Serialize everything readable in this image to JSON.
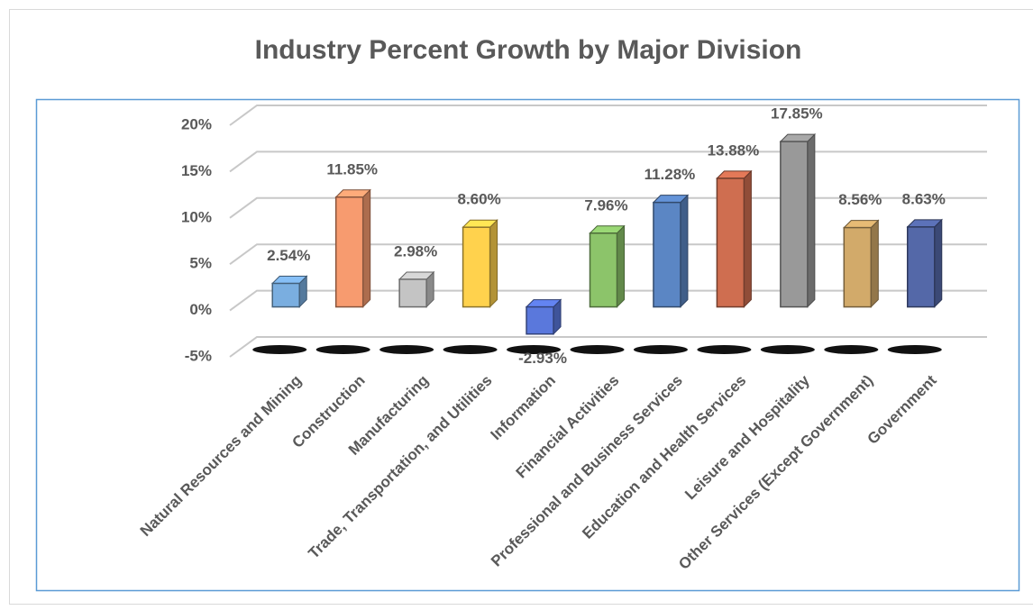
{
  "chart_data": {
    "type": "bar3d",
    "title": "Industry Percent Growth by Major Division",
    "categories": [
      "Natural Resources and Mining",
      "Construction",
      "Manufacturing",
      "Trade, Transportation, and Utilities",
      "Information",
      "Financial Activities",
      "Professional and Business Services",
      "Education and Health Services",
      "Leisure and Hospitality",
      "Other Services (Except Government)",
      "Government"
    ],
    "values": [
      2.54,
      11.85,
      2.98,
      8.6,
      -2.93,
      7.96,
      11.28,
      13.88,
      17.85,
      8.56,
      8.63
    ],
    "value_labels": [
      "2.54%",
      "11.85%",
      "2.98%",
      "8.60%",
      "-2.93%",
      "7.96%",
      "11.28%",
      "13.88%",
      "17.85%",
      "8.56%",
      "8.63%"
    ],
    "colors": [
      "#7aaee0",
      "#f79b6f",
      "#c4c4c4",
      "#ffd24d",
      "#5a78dc",
      "#8cc46a",
      "#5b86c4",
      "#cf6e50",
      "#999999",
      "#d2aa6a",
      "#5468a8"
    ],
    "ylim": [
      -5,
      20
    ],
    "yticks": [
      {
        "value": -5,
        "label": "-5%"
      },
      {
        "value": 0,
        "label": "0%"
      },
      {
        "value": 5,
        "label": "5%"
      },
      {
        "value": 10,
        "label": "10%"
      },
      {
        "value": 15,
        "label": "15%"
      },
      {
        "value": 20,
        "label": "20%"
      }
    ],
    "grid": true
  }
}
